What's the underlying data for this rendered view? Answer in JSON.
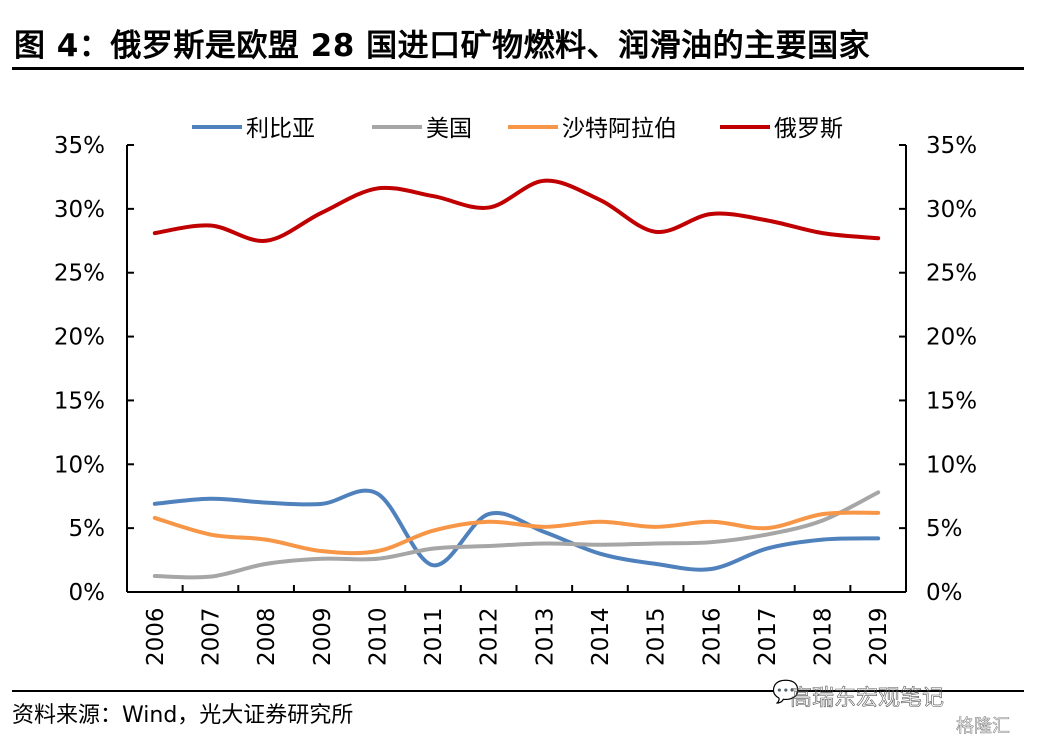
{
  "title": "图 4：俄罗斯是欧盟 28 国进口矿物燃料、润滑油的主要国家",
  "source": "资料来源：Wind，光大证券研究所",
  "watermark": {
    "text": "高瑞东宏观笔记",
    "icon": "wechat-icon",
    "brand": "格隆汇"
  },
  "chart_data": {
    "type": "line",
    "title": "图 4：俄罗斯是欧盟 28 国进口矿物燃料、润滑油的主要国家",
    "xlabel": "",
    "ylabel": "",
    "categories": [
      "2006",
      "2007",
      "2008",
      "2009",
      "2010",
      "2011",
      "2012",
      "2013",
      "2014",
      "2015",
      "2016",
      "2017",
      "2018",
      "2019"
    ],
    "ylim": [
      0,
      35
    ],
    "yticks": [
      "0%",
      "5%",
      "10%",
      "15%",
      "20%",
      "25%",
      "30%",
      "35%"
    ],
    "secondary_y": {
      "ylim": [
        0,
        35
      ],
      "yticks": [
        "0%",
        "5%",
        "10%",
        "15%",
        "20%",
        "25%",
        "30%",
        "35%"
      ]
    },
    "grid": false,
    "legend_position": "top",
    "smooth": true,
    "series": [
      {
        "name": "利比亚",
        "color": "#4f81bd",
        "values": [
          6.9,
          7.3,
          7.0,
          6.9,
          7.7,
          2.1,
          6.1,
          4.7,
          3.0,
          2.2,
          1.8,
          3.4,
          4.1,
          4.2
        ]
      },
      {
        "name": "美国",
        "color": "#a6a6a6",
        "values": [
          1.25,
          1.2,
          2.2,
          2.6,
          2.6,
          3.4,
          3.6,
          3.8,
          3.7,
          3.8,
          3.9,
          4.5,
          5.6,
          7.8
        ]
      },
      {
        "name": "沙特阿拉伯",
        "color": "#f79646",
        "values": [
          5.8,
          4.5,
          4.1,
          3.2,
          3.2,
          4.8,
          5.5,
          5.1,
          5.5,
          5.1,
          5.5,
          5.0,
          6.1,
          6.2
        ]
      },
      {
        "name": "俄罗斯",
        "color": "#c00000",
        "values": [
          28.1,
          28.7,
          27.5,
          29.7,
          31.6,
          31.0,
          30.1,
          32.2,
          30.7,
          28.2,
          29.6,
          29.1,
          28.1,
          27.7
        ]
      }
    ]
  }
}
